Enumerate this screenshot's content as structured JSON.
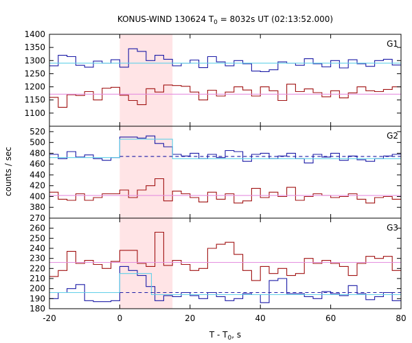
{
  "chart_data": {
    "type": "line",
    "title_main": "KONUS-WIND 130624 T",
    "title_sub": "0",
    "title_rest": " = 8032s UT (02:13:52.000)",
    "xlabel_main": "T - T",
    "xlabel_sub": "0",
    "xlabel_rest": ", s",
    "ylabel": "counts / sec",
    "xlim": [
      -20,
      80
    ],
    "xticks": [
      "-20",
      "0",
      "20",
      "40",
      "60",
      "80"
    ],
    "highlight_interval": [
      0,
      15
    ],
    "colors": {
      "blue": "#1a1aa6",
      "red": "#a01010",
      "cyan": "#5fd0e8",
      "pink": "#e48ee0",
      "highlight": "#ffe4e6"
    },
    "panels": [
      {
        "label": "G1",
        "ylim": [
          1050,
          1400
        ],
        "yticks": [
          "1050",
          "1100",
          "1150",
          "1200",
          "1250",
          "1300",
          "1350",
          "1400"
        ],
        "series": [
          {
            "color": "blue",
            "bin_edges": [
              -20,
              -17.5,
              -15,
              -12.5,
              -10,
              -7.5,
              -5,
              -2.5,
              0,
              2.5,
              5,
              7.5,
              10,
              12.5,
              15,
              17.5,
              20,
              22.5,
              25,
              27.5,
              30,
              32.5,
              35,
              37.5,
              40,
              42.5,
              45,
              47.5,
              50,
              52.5,
              55,
              57.5,
              60,
              62.5,
              65,
              67.5,
              70,
              72.5,
              75,
              77.5,
              80
            ],
            "values": [
              1280,
              1320,
              1315,
              1282,
              1275,
              1298,
              1290,
              1303,
              1275,
              1345,
              1335,
              1300,
              1320,
              1305,
              1280,
              1290,
              1302,
              1273,
              1315,
              1295,
              1280,
              1300,
              1288,
              1260,
              1258,
              1265,
              1295,
              1290,
              1282,
              1307,
              1288,
              1276,
              1300,
              1272,
              1303,
              1288,
              1278,
              1300,
              1305,
              1283
            ]
          },
          {
            "color": "red",
            "bin_edges": [
              -20,
              -17.5,
              -15,
              -12.5,
              -10,
              -7.5,
              -5,
              -2.5,
              0,
              2.5,
              5,
              7.5,
              10,
              12.5,
              15,
              17.5,
              20,
              22.5,
              25,
              27.5,
              30,
              32.5,
              35,
              37.5,
              40,
              42.5,
              45,
              47.5,
              50,
              52.5,
              55,
              57.5,
              60,
              62.5,
              65,
              67.5,
              70,
              72.5,
              75,
              77.5,
              80
            ],
            "values": [
              1160,
              1122,
              1170,
              1167,
              1182,
              1150,
              1195,
              1198,
              1168,
              1148,
              1132,
              1193,
              1180,
              1207,
              1205,
              1202,
              1180,
              1150,
              1187,
              1165,
              1180,
              1200,
              1188,
              1165,
              1200,
              1185,
              1148,
              1210,
              1182,
              1192,
              1178,
              1162,
              1185,
              1158,
              1177,
              1200,
              1185,
              1182,
              1190,
              1200
            ]
          },
          {
            "color": "cyan",
            "x": [
              -20,
              80
            ],
            "values": [
              1290,
              1290
            ]
          },
          {
            "color": "pink",
            "x": [
              -20,
              80
            ],
            "values": [
              1172,
              1172
            ]
          }
        ]
      },
      {
        "label": "G2",
        "ylim": [
          360,
          530
        ],
        "yticks": [
          "360",
          "380",
          "400",
          "420",
          "440",
          "460",
          "480",
          "500",
          "520"
        ],
        "series": [
          {
            "color": "blue",
            "bin_edges": [
              -20,
              -17.5,
              -15,
              -12.5,
              -10,
              -7.5,
              -5,
              -2.5,
              0,
              2.5,
              5,
              7.5,
              10,
              12.5,
              15,
              17.5,
              20,
              22.5,
              25,
              27.5,
              30,
              32.5,
              35,
              37.5,
              40,
              42.5,
              45,
              47.5,
              50,
              52.5,
              55,
              57.5,
              60,
              62.5,
              65,
              67.5,
              70,
              72.5,
              75,
              77.5,
              80
            ],
            "values": [
              478,
              470,
              483,
              473,
              477,
              470,
              467,
              472,
              510,
              510,
              508,
              512,
              498,
              492,
              478,
              475,
              480,
              470,
              478,
              472,
              485,
              483,
              465,
              478,
              480,
              470,
              475,
              480,
              470,
              462,
              478,
              473,
              480,
              467,
              475,
              468,
              465,
              470,
              475,
              478
            ]
          },
          {
            "color": "red",
            "bin_edges": [
              -20,
              -17.5,
              -15,
              -12.5,
              -10,
              -7.5,
              -5,
              -2.5,
              0,
              2.5,
              5,
              7.5,
              10,
              12.5,
              15,
              17.5,
              20,
              22.5,
              25,
              27.5,
              30,
              32.5,
              35,
              37.5,
              40,
              42.5,
              45,
              47.5,
              50,
              52.5,
              55,
              57.5,
              60,
              62.5,
              65,
              67.5,
              70,
              72.5,
              75,
              77.5,
              80
            ],
            "values": [
              408,
              395,
              393,
              405,
              393,
              398,
              405,
              405,
              412,
              398,
              412,
              420,
              433,
              392,
              410,
              405,
              398,
              390,
              408,
              395,
              405,
              388,
              392,
              415,
              398,
              408,
              400,
              417,
              393,
              400,
              405,
              402,
              398,
              400,
              405,
              395,
              388,
              398,
              400,
              395
            ]
          },
          {
            "color": "cyan",
            "x": [
              -20,
              0,
              0,
              15,
              15,
              80
            ],
            "values": [
              472,
              472,
              506,
              506,
              470,
              470
            ]
          },
          {
            "color": "blue",
            "dashed": true,
            "x": [
              0,
              80
            ],
            "values": [
              474,
              474
            ]
          },
          {
            "color": "pink",
            "x": [
              -20,
              80
            ],
            "values": [
              402,
              402
            ]
          }
        ]
      },
      {
        "label": "G3",
        "ylim": [
          180,
          270
        ],
        "yticks": [
          "180",
          "190",
          "200",
          "210",
          "220",
          "230",
          "240",
          "250",
          "260",
          "270"
        ],
        "series": [
          {
            "color": "red",
            "bin_edges": [
              -20,
              -17.5,
              -15,
              -12.5,
              -10,
              -7.5,
              -5,
              -2.5,
              0,
              2.5,
              5,
              7.5,
              10,
              12.5,
              15,
              17.5,
              20,
              22.5,
              25,
              27.5,
              30,
              32.5,
              35,
              37.5,
              40,
              42.5,
              45,
              47.5,
              50,
              52.5,
              55,
              57.5,
              60,
              62.5,
              65,
              67.5,
              70,
              72.5,
              75,
              77.5,
              80
            ],
            "values": [
              212,
              218,
              237,
              225,
              228,
              224,
              220,
              227,
              238,
              238,
              225,
              222,
              256,
              223,
              228,
              224,
              218,
              220,
              240,
              244,
              246,
              234,
              218,
              208,
              222,
              215,
              220,
              213,
              215,
              230,
              225,
              228,
              225,
              222,
              213,
              225,
              232,
              230,
              232,
              218
            ]
          },
          {
            "color": "blue",
            "bin_edges": [
              -20,
              -17.5,
              -15,
              -12.5,
              -10,
              -7.5,
              -5,
              -2.5,
              0,
              2.5,
              5,
              7.5,
              10,
              12.5,
              15,
              17.5,
              20,
              22.5,
              25,
              27.5,
              30,
              32.5,
              35,
              37.5,
              40,
              42.5,
              45,
              47.5,
              50,
              52.5,
              55,
              57.5,
              60,
              62.5,
              65,
              67.5,
              70,
              72.5,
              75,
              77.5,
              80
            ],
            "values": [
              190,
              196,
              200,
              204,
              188,
              187,
              187,
              188,
              222,
              218,
              213,
              202,
              188,
              193,
              192,
              196,
              193,
              190,
              196,
              192,
              188,
              190,
              195,
              194,
              186,
              208,
              210,
              195,
              195,
              192,
              190,
              197,
              195,
              193,
              203,
              195,
              189,
              192,
              196,
              188
            ]
          },
          {
            "color": "cyan",
            "x": [
              -20,
              0,
              0,
              9,
              9,
              80
            ],
            "values": [
              196,
              196,
              215,
              215,
              194,
              194
            ]
          },
          {
            "color": "blue",
            "dashed": true,
            "x": [
              0,
              80
            ],
            "values": [
              196,
              196
            ]
          },
          {
            "color": "pink",
            "x": [
              -20,
              80
            ],
            "values": [
              226,
              226
            ]
          }
        ]
      }
    ]
  }
}
